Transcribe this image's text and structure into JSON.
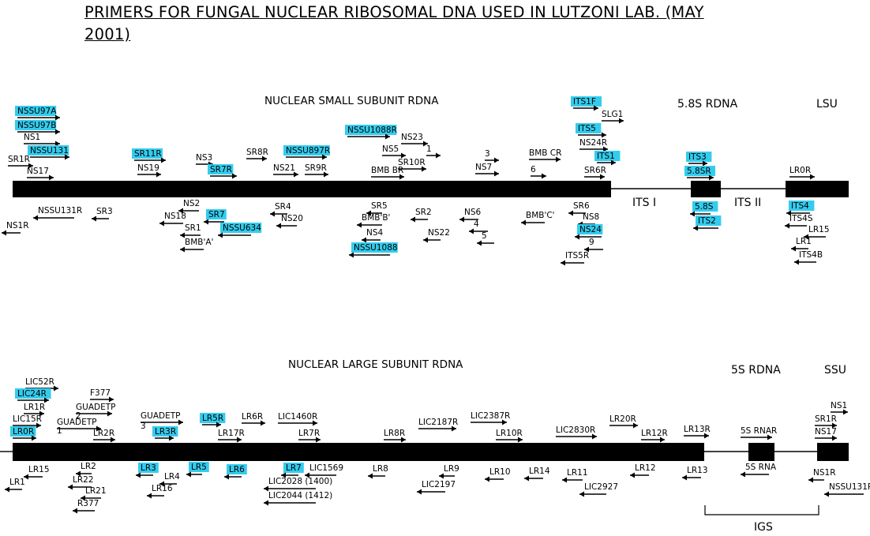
{
  "title": "PRIMERS FOR FUNGAL NUCLEAR RIBOSOMAL DNA USED IN LUTZONI LAB. (MAY\n2001)",
  "ssu_section": {
    "heading": "NUCLEAR SMALL SUBUNIT RDNA",
    "region_58s": "5.8S RDNA",
    "region_lsu": "LSU",
    "its1": "ITS I",
    "its2": "ITS II"
  },
  "lsu_section": {
    "heading": "NUCLEAR LARGE SUBUNIT RDNA",
    "region_5s": "5S RDNA",
    "region_ssu": "SSU",
    "igs": "IGS"
  },
  "colors": {
    "highlight": "#33ccee",
    "bar": "#000000",
    "text": "#000000"
  },
  "primers_top_forward": [
    {
      "name": "NSSU97A",
      "hl": true
    },
    {
      "name": "NSSU97B",
      "hl": true
    },
    {
      "name": "NS1",
      "hl": false
    },
    {
      "name": "NSSU131",
      "hl": true
    },
    {
      "name": "SR1R",
      "hl": false
    },
    {
      "name": "NS17",
      "hl": false
    },
    {
      "name": "SR11R",
      "hl": true
    },
    {
      "name": "NS19",
      "hl": false
    },
    {
      "name": "NS3",
      "hl": false
    },
    {
      "name": "SR7R",
      "hl": true
    },
    {
      "name": "SR8R",
      "hl": false
    },
    {
      "name": "NSSU897R",
      "hl": true
    },
    {
      "name": "NS21",
      "hl": false
    },
    {
      "name": "SR9R",
      "hl": false
    },
    {
      "name": "NSSU1088R",
      "hl": true
    },
    {
      "name": "NS23",
      "hl": false
    },
    {
      "name": "1",
      "hl": false
    },
    {
      "name": "NS5",
      "hl": false
    },
    {
      "name": "SR10R",
      "hl": false
    },
    {
      "name": "BMB BR",
      "hl": false
    },
    {
      "name": "3",
      "hl": false
    },
    {
      "name": "NS7",
      "hl": false
    },
    {
      "name": "BMB CR",
      "hl": false
    },
    {
      "name": "6",
      "hl": false
    },
    {
      "name": "ITS1F",
      "hl": true
    },
    {
      "name": "SLG1",
      "hl": false
    },
    {
      "name": "ITS5",
      "hl": true
    },
    {
      "name": "NS24R",
      "hl": false
    },
    {
      "name": "ITS1",
      "hl": true
    },
    {
      "name": "SR6R",
      "hl": false
    },
    {
      "name": "ITS3",
      "hl": true
    },
    {
      "name": "5.8SR",
      "hl": true
    },
    {
      "name": "LR0R",
      "hl": false
    }
  ],
  "primers_top_reverse": [
    {
      "name": "NSSU131R",
      "hl": false
    },
    {
      "name": "SR3",
      "hl": false
    },
    {
      "name": "NS1R",
      "hl": false
    },
    {
      "name": "NS2",
      "hl": false
    },
    {
      "name": "NS18",
      "hl": false
    },
    {
      "name": "SR7",
      "hl": true
    },
    {
      "name": "SR1",
      "hl": false
    },
    {
      "name": "NSSU634",
      "hl": true
    },
    {
      "name": "BMB'A'",
      "hl": false
    },
    {
      "name": "SR4",
      "hl": false
    },
    {
      "name": "NS20",
      "hl": false
    },
    {
      "name": "SR5",
      "hl": false
    },
    {
      "name": "BMB'B'",
      "hl": false
    },
    {
      "name": "SR2",
      "hl": false
    },
    {
      "name": "NS4",
      "hl": false
    },
    {
      "name": "NSSU1088",
      "hl": true
    },
    {
      "name": "NS22",
      "hl": false
    },
    {
      "name": "NS6",
      "hl": false
    },
    {
      "name": "4",
      "hl": false
    },
    {
      "name": "5",
      "hl": false
    },
    {
      "name": "BMB'C'",
      "hl": false
    },
    {
      "name": "SR6",
      "hl": false
    },
    {
      "name": "NS8",
      "hl": false
    },
    {
      "name": "NS24",
      "hl": true
    },
    {
      "name": "9",
      "hl": false
    },
    {
      "name": "ITS5R",
      "hl": false
    },
    {
      "name": "5.8S",
      "hl": true
    },
    {
      "name": "ITS2",
      "hl": true
    },
    {
      "name": "ITS4",
      "hl": true
    },
    {
      "name": "ITS4S",
      "hl": false
    },
    {
      "name": "LR15",
      "hl": false
    },
    {
      "name": "LR1",
      "hl": false
    },
    {
      "name": "ITS4B",
      "hl": false
    }
  ],
  "primers_bottom_forward": [
    {
      "name": "LIC52R",
      "hl": false
    },
    {
      "name": "LIC24R",
      "hl": true
    },
    {
      "name": "LR1R",
      "hl": false
    },
    {
      "name": "LIC15R",
      "hl": false
    },
    {
      "name": "LR0R",
      "hl": true
    },
    {
      "name": "F377",
      "hl": false
    },
    {
      "name": "GUADETP",
      "hl": false
    },
    {
      "name": "GUADETP",
      "hl": false
    },
    {
      "name": "2",
      "hl": false
    },
    {
      "name": "1",
      "hl": false
    },
    {
      "name": "LR2R",
      "hl": false
    },
    {
      "name": "GUADETP",
      "hl": false
    },
    {
      "name": "3",
      "hl": false
    },
    {
      "name": "LR5R",
      "hl": true
    },
    {
      "name": "LR3R",
      "hl": true
    },
    {
      "name": "LR6R",
      "hl": false
    },
    {
      "name": "LR17R",
      "hl": false
    },
    {
      "name": "LIC1460R",
      "hl": false
    },
    {
      "name": "LR7R",
      "hl": false
    },
    {
      "name": "LR8R",
      "hl": false
    },
    {
      "name": "LIC2187R",
      "hl": false
    },
    {
      "name": "LIC2387R",
      "hl": false
    },
    {
      "name": "LR10R",
      "hl": false
    },
    {
      "name": "LIC2830R",
      "hl": false
    },
    {
      "name": "LR20R",
      "hl": false
    },
    {
      "name": "LR12R",
      "hl": false
    },
    {
      "name": "LR13R",
      "hl": false
    },
    {
      "name": "5S RNAR",
      "hl": false
    },
    {
      "name": "NS1",
      "hl": false
    },
    {
      "name": "SR1R",
      "hl": false
    },
    {
      "name": "NS17",
      "hl": false
    }
  ],
  "primers_bottom_reverse": [
    {
      "name": "LR15",
      "hl": false
    },
    {
      "name": "LR1",
      "hl": false
    },
    {
      "name": "LR2",
      "hl": false
    },
    {
      "name": "LR22",
      "hl": false
    },
    {
      "name": "LR21",
      "hl": false
    },
    {
      "name": "R377",
      "hl": false
    },
    {
      "name": "LR3",
      "hl": true
    },
    {
      "name": "LR5",
      "hl": true
    },
    {
      "name": "LR4",
      "hl": false
    },
    {
      "name": "LR16",
      "hl": false
    },
    {
      "name": "LR6",
      "hl": true
    },
    {
      "name": "LR7",
      "hl": true
    },
    {
      "name": "LIC1569",
      "hl": false
    },
    {
      "name": "LIC2028 (1400)",
      "hl": false
    },
    {
      "name": "LIC2044 (1412)",
      "hl": false
    },
    {
      "name": "LR8",
      "hl": false
    },
    {
      "name": "LR9",
      "hl": false
    },
    {
      "name": "LIC2197",
      "hl": false
    },
    {
      "name": "LR10",
      "hl": false
    },
    {
      "name": "LR14",
      "hl": false
    },
    {
      "name": "LR11",
      "hl": false
    },
    {
      "name": "LIC2927",
      "hl": false
    },
    {
      "name": "LR12",
      "hl": false
    },
    {
      "name": "LR13",
      "hl": false
    },
    {
      "name": "5S RNA",
      "hl": false
    },
    {
      "name": "NS1R",
      "hl": false
    },
    {
      "name": "NSSU131R",
      "hl": false
    }
  ]
}
